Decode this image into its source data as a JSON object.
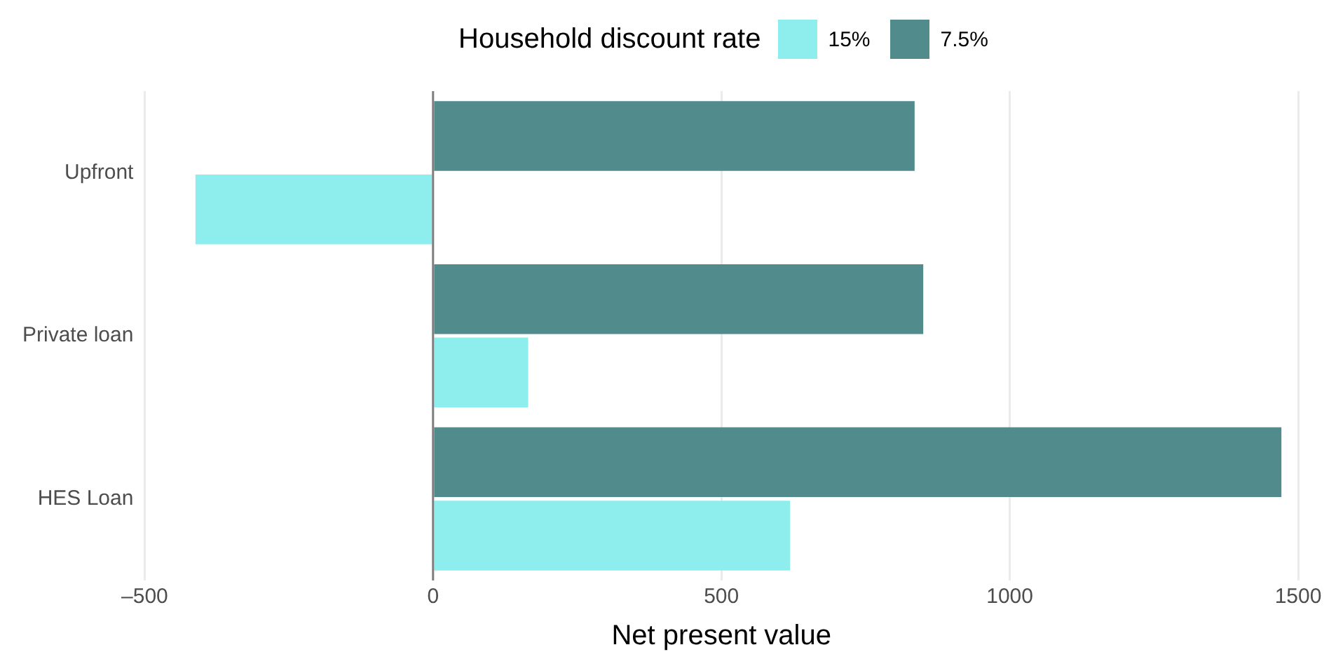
{
  "chart_data": {
    "type": "bar",
    "orientation": "horizontal",
    "xlabel": "Net present value",
    "legend_title": "Household discount rate",
    "legend": "top",
    "categories": [
      "Upfront",
      "Private loan",
      "HES Loan"
    ],
    "series": [
      {
        "name": "15%",
        "color": "#8eeded",
        "values": [
          -412,
          165,
          619
        ]
      },
      {
        "name": "7.5%",
        "color": "#528b8b",
        "values": [
          835,
          850,
          1471
        ]
      }
    ],
    "xlim": [
      -500,
      1500
    ],
    "xticks": [
      {
        "value": -500,
        "label": "–500"
      },
      0,
      500,
      1000,
      1500
    ],
    "grid": "x",
    "ref_lines": [
      {
        "axis": "x",
        "value": 0,
        "color": "#7f7f7f"
      }
    ]
  }
}
